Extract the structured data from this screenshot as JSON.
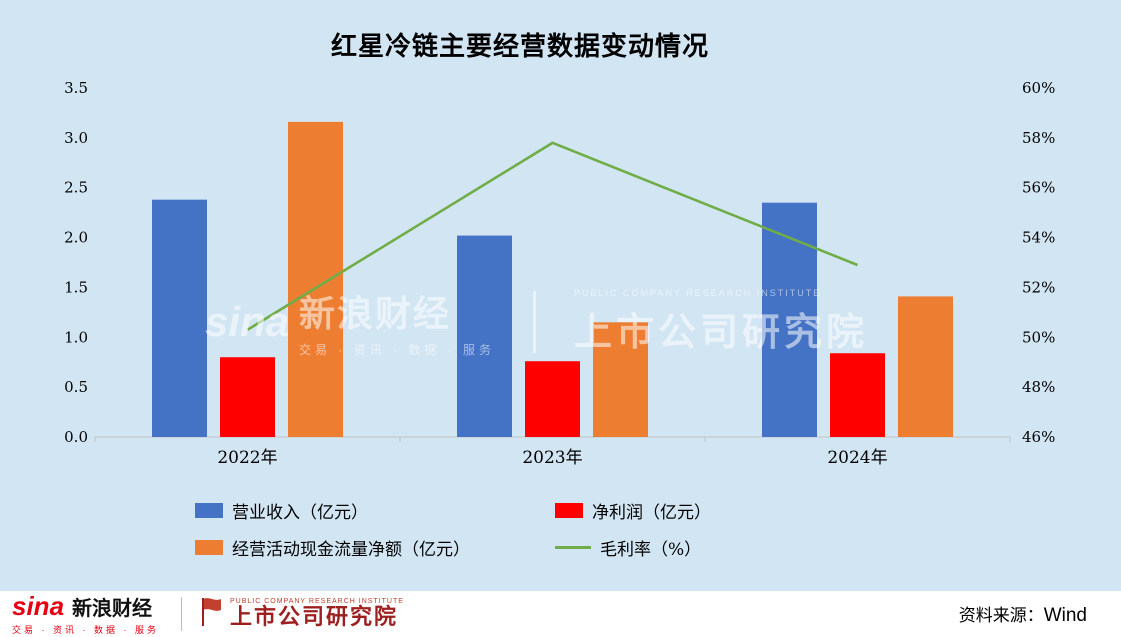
{
  "title": "红星冷链主要经营数据变动情况",
  "chart_data": {
    "type": "bar",
    "subtype": "grouped-bars-with-line",
    "title": "红星冷链主要经营数据变动情况",
    "categories": [
      "2022年",
      "2023年",
      "2024年"
    ],
    "series": [
      {
        "name": "营业收入（亿元）",
        "type": "bar",
        "axis": "left",
        "color": "#4472c4",
        "values": [
          2.38,
          2.02,
          2.35
        ]
      },
      {
        "name": "净利润（亿元）",
        "type": "bar",
        "axis": "left",
        "color": "#fe0000",
        "values": [
          0.8,
          0.76,
          0.84
        ]
      },
      {
        "name": "经营活动现金流量净额（亿元）",
        "type": "bar",
        "axis": "left",
        "color": "#ed7d31",
        "values": [
          3.16,
          1.15,
          1.41
        ]
      },
      {
        "name": "毛利率（%）",
        "type": "line",
        "axis": "right",
        "color": "#70ad47",
        "values": [
          50.3,
          57.8,
          52.9
        ]
      }
    ],
    "left_axis": {
      "min": 0,
      "max": 3.5,
      "step": 0.5,
      "decimals": 1,
      "suffix": ""
    },
    "right_axis": {
      "min": 46,
      "max": 60,
      "step": 2,
      "decimals": 0,
      "suffix": "%"
    },
    "grid": false,
    "legend_position": "bottom"
  },
  "watermark": {
    "sina_logo": "sina",
    "sina_name": "新浪财经",
    "sina_sub": "交易 · 资讯 · 数据 · 服务",
    "institute_caption": "PUBLIC COMPANY RESEARCH INSTITUTE",
    "institute_name": "上市公司研究院"
  },
  "footer": {
    "sina_logo": "sina",
    "sina_name": "新浪财经",
    "sina_tagline": "交易 · 资讯 · 数据 · 服务",
    "institute_caption": "PUBLIC COMPANY RESEARCH INSTITUTE",
    "institute_name": "上市公司研究院",
    "source_label": "资料来源：",
    "source_value": "Wind"
  }
}
